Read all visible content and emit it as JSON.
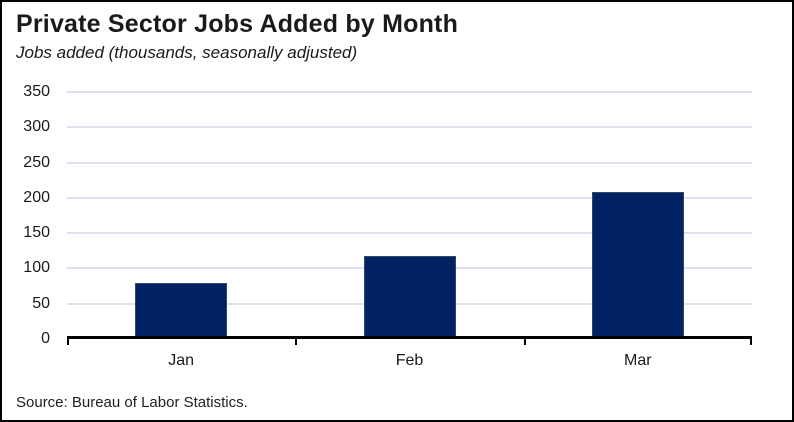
{
  "header": {
    "title": "Private Sector Jobs Added by Month",
    "subtitle": "Jobs added (thousands, seasonally adjusted)"
  },
  "chart_data": {
    "type": "bar",
    "categories": [
      "Jan",
      "Feb",
      "Mar"
    ],
    "values": [
      79,
      117,
      209
    ],
    "title": "Private Sector Jobs Added by Month",
    "xlabel": "",
    "ylabel": "Jobs added (thousands, seasonally adjusted)",
    "ylim": [
      0,
      350
    ],
    "ytick_step": 50,
    "yticks": [
      0,
      50,
      100,
      150,
      200,
      250,
      300,
      350
    ],
    "grid": true,
    "legend": "none",
    "colors": {
      "bar_fill": "#032263",
      "bar_border": "#2e4a69",
      "gridline": "#dde1ee",
      "axis": "#000000",
      "text": "#1a1a1a"
    }
  },
  "footer": {
    "source": "Source: Bureau of Labor Statistics."
  }
}
